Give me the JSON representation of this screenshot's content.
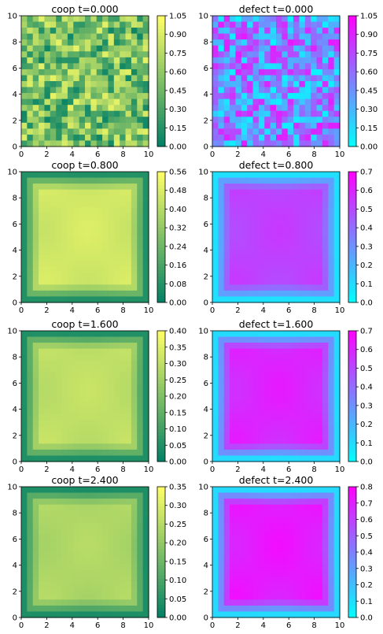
{
  "chart_data": [
    {
      "type": "heatmap",
      "title": "coop   t=0.000",
      "colormap": "summer",
      "xlim": [
        0,
        10
      ],
      "ylim": [
        0,
        10
      ],
      "xticks": [
        "0",
        "2",
        "4",
        "6",
        "8",
        "10"
      ],
      "yticks": [
        "0",
        "2",
        "4",
        "6",
        "8",
        "10"
      ],
      "colorbar_ticks": [
        "0.00",
        "0.15",
        "0.30",
        "0.45",
        "0.60",
        "0.75",
        "0.90",
        "1.05"
      ],
      "colorbar_range": [
        0,
        1.05
      ],
      "field": "noise",
      "center_value": 0.5
    },
    {
      "type": "heatmap",
      "title": "defect   t=0.000",
      "colormap": "cool",
      "xlim": [
        0,
        10
      ],
      "ylim": [
        0,
        10
      ],
      "xticks": [
        "0",
        "2",
        "4",
        "6",
        "8",
        "10"
      ],
      "yticks": [
        "0",
        "2",
        "4",
        "6",
        "8",
        "10"
      ],
      "colorbar_ticks": [
        "0.00",
        "0.15",
        "0.30",
        "0.45",
        "0.60",
        "0.75",
        "0.90",
        "1.05"
      ],
      "colorbar_range": [
        0,
        1.05
      ],
      "field": "noise",
      "center_value": 0.5
    },
    {
      "type": "heatmap",
      "title": "coop   t=0.800",
      "colormap": "summer",
      "xlim": [
        0,
        10
      ],
      "ylim": [
        0,
        10
      ],
      "xticks": [
        "0",
        "2",
        "4",
        "6",
        "8",
        "10"
      ],
      "yticks": [
        "0",
        "2",
        "4",
        "6",
        "8",
        "10"
      ],
      "colorbar_ticks": [
        "0.00",
        "0.08",
        "0.16",
        "0.24",
        "0.32",
        "0.40",
        "0.48",
        "0.56"
      ],
      "colorbar_range": [
        0,
        0.56
      ],
      "field": "plateau",
      "center_value": 0.46
    },
    {
      "type": "heatmap",
      "title": "defect   t=0.800",
      "colormap": "cool",
      "xlim": [
        0,
        10
      ],
      "ylim": [
        0,
        10
      ],
      "xticks": [
        "0",
        "2",
        "4",
        "6",
        "8",
        "10"
      ],
      "yticks": [
        "0",
        "2",
        "4",
        "6",
        "8",
        "10"
      ],
      "colorbar_ticks": [
        "0.0",
        "0.1",
        "0.2",
        "0.3",
        "0.4",
        "0.5",
        "0.6",
        "0.7"
      ],
      "colorbar_range": [
        0,
        0.7
      ],
      "field": "plateau",
      "center_value": 0.52
    },
    {
      "type": "heatmap",
      "title": "coop   t=1.600",
      "colormap": "summer",
      "xlim": [
        0,
        10
      ],
      "ylim": [
        0,
        10
      ],
      "xticks": [
        "0",
        "2",
        "4",
        "6",
        "8",
        "10"
      ],
      "yticks": [
        "0",
        "2",
        "4",
        "6",
        "8",
        "10"
      ],
      "colorbar_ticks": [
        "0.00",
        "0.05",
        "0.10",
        "0.15",
        "0.20",
        "0.25",
        "0.30",
        "0.35",
        "0.40"
      ],
      "colorbar_range": [
        0,
        0.4
      ],
      "field": "plateau",
      "center_value": 0.3
    },
    {
      "type": "heatmap",
      "title": "defect   t=1.600",
      "colormap": "cool",
      "xlim": [
        0,
        10
      ],
      "ylim": [
        0,
        10
      ],
      "xticks": [
        "0",
        "2",
        "4",
        "6",
        "8",
        "10"
      ],
      "yticks": [
        "0",
        "2",
        "4",
        "6",
        "8",
        "10"
      ],
      "colorbar_ticks": [
        "0.0",
        "0.1",
        "0.2",
        "0.3",
        "0.4",
        "0.5",
        "0.6",
        "0.7"
      ],
      "colorbar_range": [
        0,
        0.7
      ],
      "field": "plateau",
      "center_value": 0.6
    },
    {
      "type": "heatmap",
      "title": "coop   t=2.400",
      "colormap": "summer",
      "xlim": [
        0,
        10
      ],
      "ylim": [
        0,
        10
      ],
      "xticks": [
        "0",
        "2",
        "4",
        "6",
        "8",
        "10"
      ],
      "yticks": [
        "0",
        "2",
        "4",
        "6",
        "8",
        "10"
      ],
      "colorbar_ticks": [
        "0.00",
        "0.05",
        "0.10",
        "0.15",
        "0.20",
        "0.25",
        "0.30",
        "0.35"
      ],
      "colorbar_range": [
        0,
        0.35
      ],
      "field": "plateau",
      "center_value": 0.24
    },
    {
      "type": "heatmap",
      "title": "defect   t=2.400",
      "colormap": "cool",
      "xlim": [
        0,
        10
      ],
      "ylim": [
        0,
        10
      ],
      "xticks": [
        "0",
        "2",
        "4",
        "6",
        "8",
        "10"
      ],
      "yticks": [
        "0",
        "2",
        "4",
        "6",
        "8",
        "10"
      ],
      "colorbar_ticks": [
        "0.0",
        "0.1",
        "0.2",
        "0.3",
        "0.4",
        "0.5",
        "0.6",
        "0.7",
        "0.8"
      ],
      "colorbar_range": [
        0,
        0.8
      ],
      "field": "plateau",
      "center_value": 0.72
    }
  ]
}
